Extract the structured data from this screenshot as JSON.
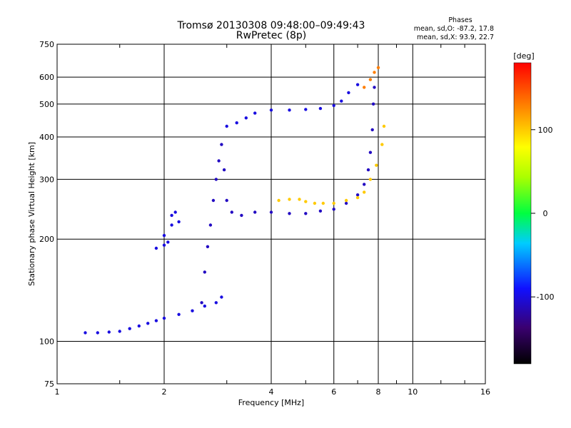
{
  "chart_data": {
    "type": "scatter",
    "title": "Tromsø 20130308 09:48:00–09:49:43",
    "subtitle": "RwPretec (8p)",
    "xlabel": "Frequency [MHz]",
    "ylabel": "Stationary phase Virtual Height [km]",
    "x_scale": "log",
    "y_scale": "log",
    "xlim": [
      1,
      16
    ],
    "ylim": [
      75,
      750
    ],
    "x_ticks": [
      1,
      2,
      4,
      6,
      8,
      10,
      16
    ],
    "y_ticks": [
      75,
      100,
      200,
      300,
      400,
      500,
      600,
      750
    ],
    "grid": true,
    "phase_info": {
      "title": "Phases",
      "line_o": "mean, sd,O: -87.2, 17.8",
      "line_x": "mean, sd,X: 93.9, 22.7"
    },
    "colorbar": {
      "label": "[deg]",
      "ticks": [
        100,
        0,
        -100
      ],
      "range": [
        -180,
        180
      ]
    },
    "series": [
      {
        "points": [
          [
            1.2,
            106
          ],
          [
            1.3,
            106
          ],
          [
            1.4,
            106.5
          ],
          [
            1.5,
            107
          ],
          [
            1.6,
            109
          ],
          [
            1.7,
            111
          ],
          [
            1.8,
            113
          ],
          [
            1.9,
            115
          ],
          [
            2.0,
            117
          ],
          [
            2.2,
            120
          ],
          [
            2.4,
            123
          ],
          [
            2.6,
            127
          ],
          [
            2.8,
            130
          ],
          [
            2.9,
            135
          ]
        ],
        "phase": -100
      },
      {
        "points": [
          [
            1.9,
            188
          ],
          [
            2.0,
            192
          ],
          [
            2.05,
            196
          ],
          [
            2.1,
            220
          ],
          [
            2.1,
            235
          ],
          [
            2.15,
            240
          ],
          [
            2.2,
            225
          ],
          [
            2.0,
            205
          ]
        ],
        "phase": -100
      },
      {
        "points": [
          [
            2.55,
            130
          ],
          [
            2.6,
            160
          ],
          [
            2.65,
            190
          ],
          [
            2.7,
            220
          ],
          [
            2.75,
            260
          ],
          [
            2.8,
            300
          ],
          [
            2.85,
            340
          ],
          [
            2.9,
            380
          ],
          [
            2.95,
            320
          ],
          [
            3.0,
            260
          ],
          [
            3.1,
            240
          ],
          [
            3.3,
            235
          ],
          [
            3.6,
            240
          ],
          [
            4.0,
            240
          ],
          [
            4.5,
            238
          ],
          [
            5.0,
            238
          ],
          [
            5.5,
            242
          ],
          [
            6.0,
            245
          ],
          [
            6.5,
            255
          ],
          [
            7.0,
            270
          ],
          [
            7.3,
            290
          ],
          [
            7.5,
            320
          ],
          [
            7.6,
            360
          ],
          [
            7.7,
            420
          ],
          [
            7.75,
            500
          ],
          [
            7.8,
            560
          ]
        ],
        "phase": -110
      },
      {
        "points": [
          [
            3.0,
            430
          ],
          [
            3.2,
            440
          ],
          [
            3.4,
            455
          ],
          [
            3.6,
            470
          ],
          [
            4.0,
            480
          ],
          [
            4.5,
            480
          ],
          [
            5.0,
            482
          ],
          [
            5.5,
            485
          ],
          [
            6.0,
            495
          ],
          [
            6.3,
            510
          ],
          [
            6.6,
            540
          ],
          [
            7.0,
            570
          ]
        ],
        "phase": -100
      },
      {
        "points": [
          [
            4.2,
            260
          ],
          [
            4.5,
            262
          ],
          [
            4.8,
            262
          ],
          [
            5.0,
            258
          ],
          [
            5.3,
            255
          ],
          [
            5.6,
            255
          ],
          [
            6.0,
            255
          ],
          [
            6.5,
            260
          ],
          [
            7.0,
            265
          ],
          [
            7.3,
            275
          ],
          [
            7.6,
            300
          ],
          [
            7.9,
            330
          ],
          [
            8.2,
            380
          ],
          [
            8.3,
            430
          ]
        ],
        "phase": 100
      },
      {
        "points": [
          [
            7.3,
            560
          ],
          [
            7.6,
            590
          ],
          [
            7.8,
            620
          ],
          [
            8.0,
            640
          ]
        ],
        "phase": 130
      }
    ]
  }
}
